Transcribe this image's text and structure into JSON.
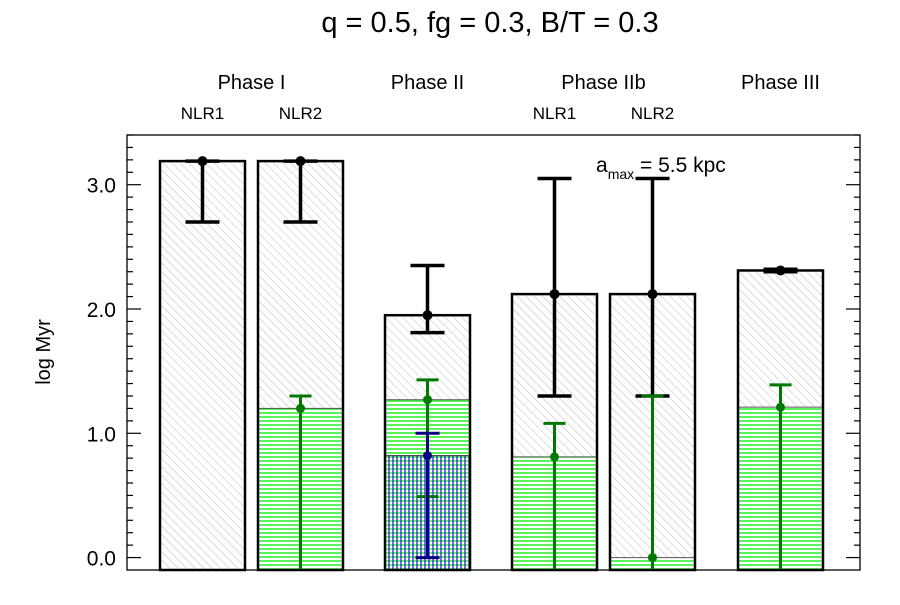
{
  "chart_data": {
    "type": "bar",
    "title": "q = 0.5, fg = 0.3, B/T = 0.3",
    "ylabel": "log Myr",
    "xlabel": "",
    "ylim": [
      -0.1,
      3.4
    ],
    "yticks": [
      "0.0",
      "1.0",
      "2.0",
      "3.0"
    ],
    "annotation": {
      "base": "a",
      "sub": "max",
      "rest": " = 5.5 kpc"
    },
    "phases": [
      {
        "label": "Phase I",
        "sublabels": [
          "NLR1",
          "NLR2"
        ]
      },
      {
        "label": "Phase II",
        "sublabels": []
      },
      {
        "label": "Phase IIb",
        "sublabels": [
          "NLR1",
          "NLR2"
        ]
      },
      {
        "label": "Phase III",
        "sublabels": []
      }
    ],
    "colors": {
      "total": "#000000",
      "green": "#00dd00",
      "green_err": "#007700",
      "blue": "#0000cc",
      "blue_err": "#000080",
      "hatch": "#bbbbbb"
    },
    "bars": [
      {
        "phase": "Phase I",
        "sub": "NLR1",
        "total": 3.19,
        "total_err": [
          2.7,
          3.19
        ],
        "green": null,
        "green_err": null,
        "blue": null,
        "blue_err": null
      },
      {
        "phase": "Phase I",
        "sub": "NLR2",
        "total": 3.19,
        "total_err": [
          2.7,
          3.19
        ],
        "green": 1.2,
        "green_err": [
          -0.1,
          1.3
        ],
        "blue": null,
        "blue_err": null
      },
      {
        "phase": "Phase II",
        "sub": "",
        "total": 1.95,
        "total_err": [
          1.81,
          2.35
        ],
        "green": 1.27,
        "green_err": [
          0.49,
          1.43
        ],
        "blue": 0.82,
        "blue_err": [
          0.0,
          1.0
        ]
      },
      {
        "phase": "Phase IIb",
        "sub": "NLR1",
        "total": 2.12,
        "total_err": [
          1.3,
          3.05
        ],
        "green": 0.81,
        "green_err": [
          -0.1,
          1.08
        ],
        "blue": null,
        "blue_err": null
      },
      {
        "phase": "Phase IIb",
        "sub": "NLR2",
        "total": 2.12,
        "total_err": [
          1.3,
          3.05
        ],
        "green": 0.0,
        "green_err": [
          -0.1,
          1.3
        ],
        "blue": null,
        "blue_err": null
      },
      {
        "phase": "Phase III",
        "sub": "",
        "total": 2.31,
        "total_err": [
          2.3,
          2.32
        ],
        "green": 1.21,
        "green_err": [
          -0.1,
          1.39
        ],
        "blue": null,
        "blue_err": null
      }
    ]
  }
}
